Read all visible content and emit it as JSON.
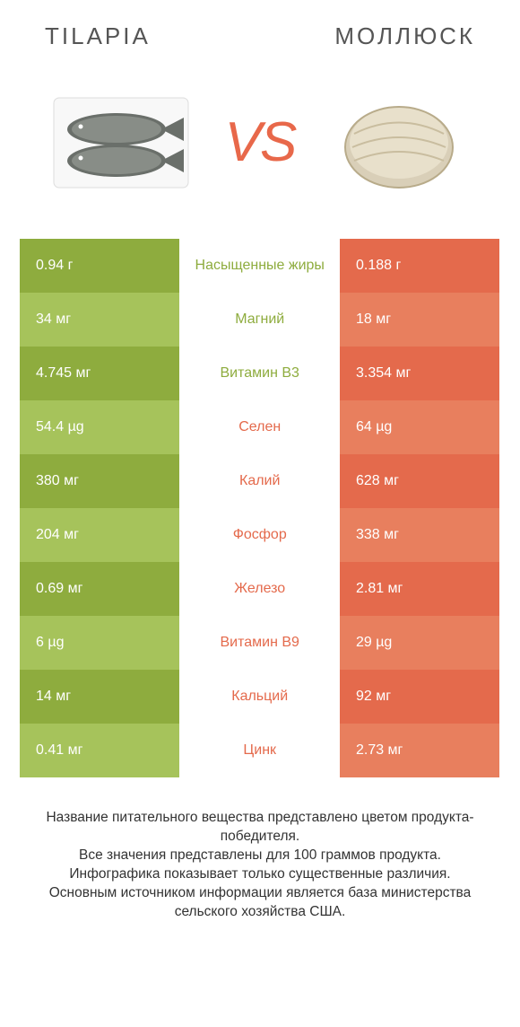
{
  "colors": {
    "green_dark": "#8eac3e",
    "green_light": "#a6c35b",
    "orange_dark": "#e46a4c",
    "orange_light": "#e87f5e",
    "label_green": "#8eac3e",
    "label_orange": "#e46a4c",
    "bg": "#ffffff",
    "text": "#333333"
  },
  "header": {
    "left": "TILAPIA",
    "right": "МОЛЛЮСК",
    "vs": "VS"
  },
  "rows": [
    {
      "left": "0.94 г",
      "mid": "Насыщенные жиры",
      "right": "0.188 г",
      "winner": "left"
    },
    {
      "left": "34 мг",
      "mid": "Магний",
      "right": "18 мг",
      "winner": "left"
    },
    {
      "left": "4.745 мг",
      "mid": "Витамин B3",
      "right": "3.354 мг",
      "winner": "left"
    },
    {
      "left": "54.4 µg",
      "mid": "Селен",
      "right": "64 µg",
      "winner": "right"
    },
    {
      "left": "380 мг",
      "mid": "Калий",
      "right": "628 мг",
      "winner": "right"
    },
    {
      "left": "204 мг",
      "mid": "Фосфор",
      "right": "338 мг",
      "winner": "right"
    },
    {
      "left": "0.69 мг",
      "mid": "Железо",
      "right": "2.81 мг",
      "winner": "right"
    },
    {
      "left": "6 µg",
      "mid": "Витамин B9",
      "right": "29 µg",
      "winner": "right"
    },
    {
      "left": "14 мг",
      "mid": "Кальций",
      "right": "92 мг",
      "winner": "right"
    },
    {
      "left": "0.41 мг",
      "mid": "Цинк",
      "right": "2.73 мг",
      "winner": "right"
    }
  ],
  "footer": {
    "line1": "Название питательного вещества представлено цветом продукта-победителя.",
    "line2": "Все значения представлены для 100 граммов продукта.",
    "line3": "Инфографика показывает только существенные различия.",
    "line4": "Основным источником информации является база министерства сельского хозяйства США."
  }
}
